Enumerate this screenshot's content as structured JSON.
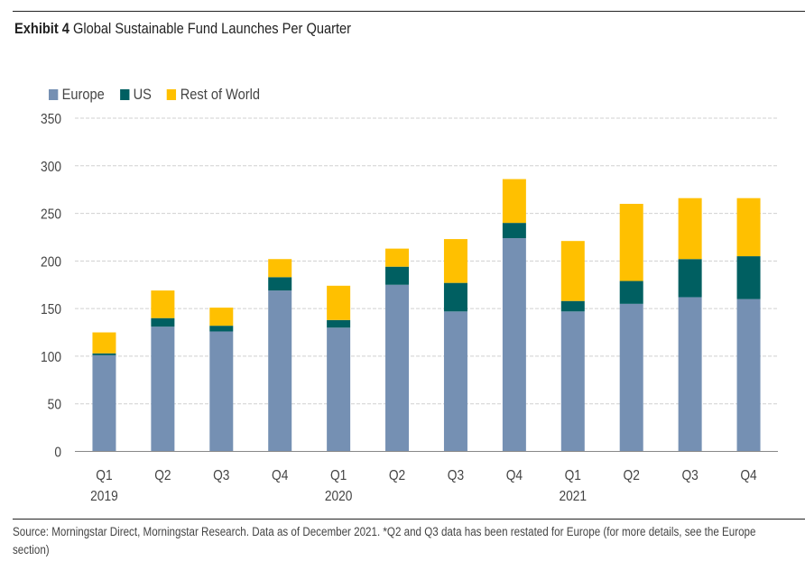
{
  "exhibit_label": "Exhibit 4",
  "title_text": "Global Sustainable Fund Launches Per Quarter",
  "source_note": "Source: Morningstar Direct, Morningstar Research. Data as of December 2021. *Q2 and Q3 data has been restated for Europe (for more details, see the Europe section)",
  "chart_data": {
    "type": "bar",
    "stacked": true,
    "title": "Exhibit 4 Global Sustainable Fund Launches Per Quarter",
    "xlabel": "",
    "ylabel": "",
    "ylim": [
      0,
      350
    ],
    "yticks": [
      0,
      50,
      100,
      150,
      200,
      250,
      300,
      350
    ],
    "grid": true,
    "legend_position": "top-left",
    "categories": [
      "Q1 2019",
      "Q2 2019",
      "Q3 2019",
      "Q4 2019",
      "Q1 2020",
      "Q2 2020",
      "Q3 2020",
      "Q4 2020",
      "Q1 2021",
      "Q2 2021",
      "Q3 2021",
      "Q4 2021"
    ],
    "tick_labels": [
      {
        "quarter": "Q1",
        "year": "2019"
      },
      {
        "quarter": "Q2",
        "year": ""
      },
      {
        "quarter": "Q3",
        "year": ""
      },
      {
        "quarter": "Q4",
        "year": ""
      },
      {
        "quarter": "Q1",
        "year": "2020"
      },
      {
        "quarter": "Q2",
        "year": ""
      },
      {
        "quarter": "Q3",
        "year": ""
      },
      {
        "quarter": "Q4",
        "year": ""
      },
      {
        "quarter": "Q1",
        "year": "2021"
      },
      {
        "quarter": "Q2",
        "year": ""
      },
      {
        "quarter": "Q3",
        "year": ""
      },
      {
        "quarter": "Q4",
        "year": ""
      }
    ],
    "series": [
      {
        "name": "Europe",
        "color": "#7590b3",
        "values": [
          101,
          131,
          126,
          169,
          130,
          175,
          147,
          224,
          147,
          155,
          162,
          160
        ]
      },
      {
        "name": "US",
        "color": "#005f61",
        "values": [
          2,
          9,
          6,
          14,
          8,
          19,
          30,
          16,
          11,
          24,
          40,
          45
        ]
      },
      {
        "name": "Rest of World",
        "color": "#ffc000",
        "values": [
          22,
          29,
          19,
          19,
          36,
          19,
          46,
          46,
          63,
          81,
          64,
          61
        ]
      }
    ]
  }
}
